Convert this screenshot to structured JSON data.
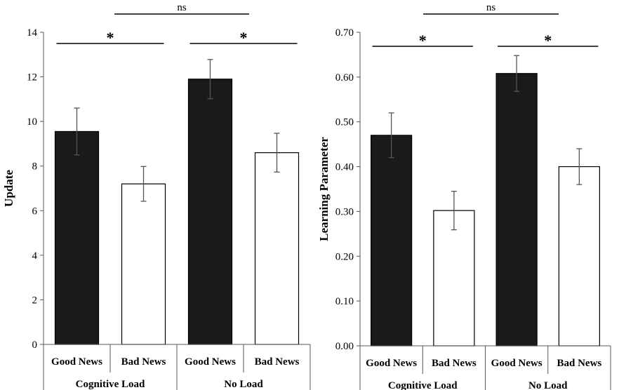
{
  "chart_data": [
    {
      "type": "bar",
      "ylabel": "Update",
      "ylim": [
        0,
        14
      ],
      "yticks": [
        "0",
        "2",
        "4",
        "6",
        "8",
        "10",
        "12",
        "14"
      ],
      "categories": [
        "Good News",
        "Bad News",
        "Good News",
        "Bad News"
      ],
      "groups": [
        "Cognitive Load",
        "No Load"
      ],
      "values": [
        9.55,
        7.2,
        11.9,
        8.6
      ],
      "errors": [
        1.05,
        0.78,
        0.88,
        0.87
      ],
      "bar_colors": [
        "#1a1a1a",
        "#ffffff",
        "#1a1a1a",
        "#ffffff"
      ],
      "significance": {
        "within": "*",
        "between": "ns"
      }
    },
    {
      "type": "bar",
      "ylabel": "Learning Parameter",
      "ylim": [
        0,
        0.7
      ],
      "yticks": [
        "0.00",
        "0.10",
        "0.20",
        "0.30",
        "0.40",
        "0.50",
        "0.60",
        "0.70"
      ],
      "categories": [
        "Good News",
        "Bad News",
        "Good News",
        "Bad News"
      ],
      "groups": [
        "Cognitive Load",
        "No Load"
      ],
      "values": [
        0.47,
        0.302,
        0.608,
        0.4
      ],
      "errors": [
        0.05,
        0.043,
        0.04,
        0.04
      ],
      "bar_colors": [
        "#1a1a1a",
        "#ffffff",
        "#1a1a1a",
        "#ffffff"
      ],
      "significance": {
        "within": "*",
        "between": "ns"
      }
    }
  ]
}
